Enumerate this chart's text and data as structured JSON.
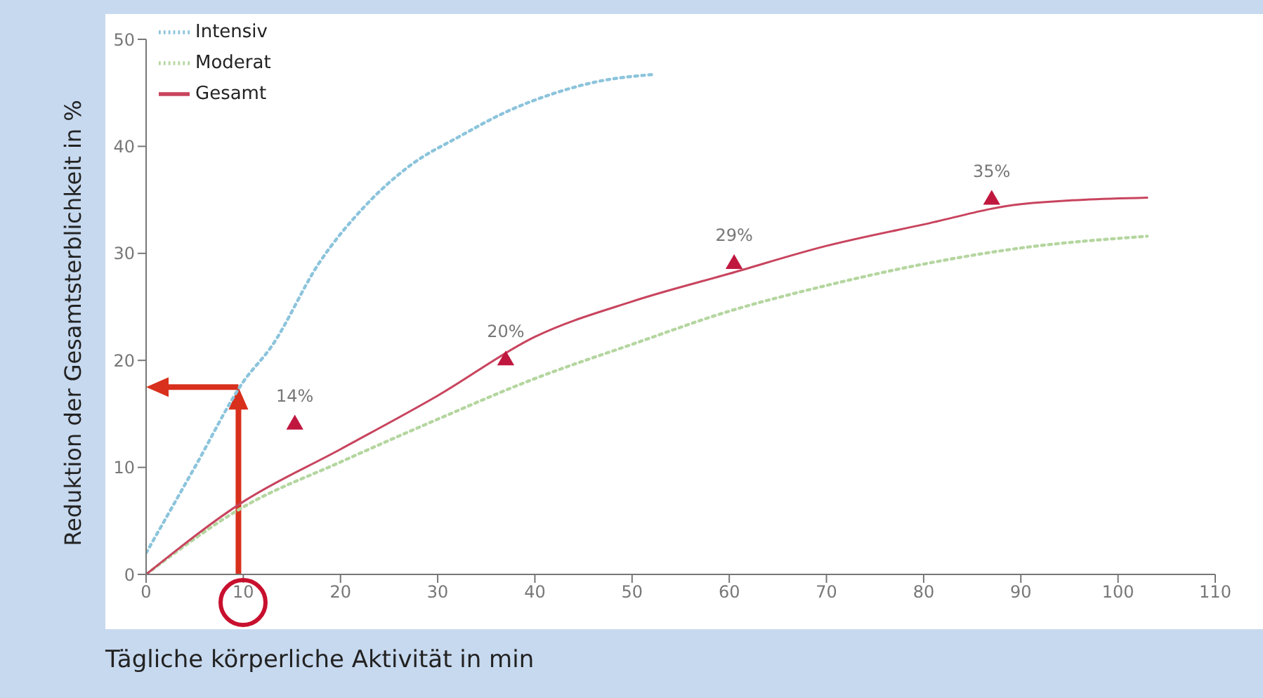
{
  "chart_data": {
    "type": "line",
    "xlabel": "Tägliche körperliche Aktivität in min",
    "ylabel": "Reduktion der Gesamtsterblichkeit in %",
    "xlim": [
      0,
      110
    ],
    "xticks": [
      0,
      10,
      20,
      30,
      40,
      50,
      60,
      70,
      80,
      90,
      100,
      110
    ],
    "ylim": [
      0,
      50
    ],
    "yticks": [
      0,
      10,
      20,
      30,
      40,
      50
    ],
    "grid": false,
    "legend": "top left",
    "series": [
      {
        "name": "Intensiv",
        "color": "#8cc4dc",
        "line_style": "dotted",
        "marker": "none",
        "x": [
          0,
          5,
          10,
          12.9,
          17.8,
          22.5,
          27.3,
          32.2,
          37,
          41.8,
          46.7,
          52
        ],
        "values": [
          2,
          10,
          18,
          21.3,
          29.1,
          34.4,
          38.3,
          40.9,
          43.2,
          44.9,
          46.1,
          46.7
        ]
      },
      {
        "name": "Moderat",
        "color": "#b5d6a0",
        "line_style": "dotted",
        "marker": "none",
        "x": [
          0,
          10,
          20,
          30,
          40,
          50,
          60,
          70,
          80,
          90,
          103
        ],
        "values": [
          0,
          6.3,
          10.5,
          14.5,
          18.3,
          21.5,
          24.6,
          27,
          29,
          30.5,
          31.6
        ]
      },
      {
        "name": "Gesamt",
        "color": "#c8445e",
        "line_style": "solid",
        "marker": "none",
        "x": [
          0,
          10,
          20,
          30,
          40,
          50,
          60,
          70,
          80,
          90,
          103
        ],
        "values": [
          0,
          6.8,
          11.7,
          16.7,
          22.2,
          25.5,
          28.1,
          30.7,
          32.7,
          34.6,
          35.2
        ]
      },
      {
        "type": "scatter",
        "color": "#c0173f",
        "marker": "triangle",
        "x": [
          15.3,
          37,
          60.5,
          87
        ],
        "values": [
          14,
          20,
          29,
          35
        ],
        "value_labels": [
          "14%",
          "20%",
          "29%",
          "35%"
        ]
      }
    ]
  }
}
